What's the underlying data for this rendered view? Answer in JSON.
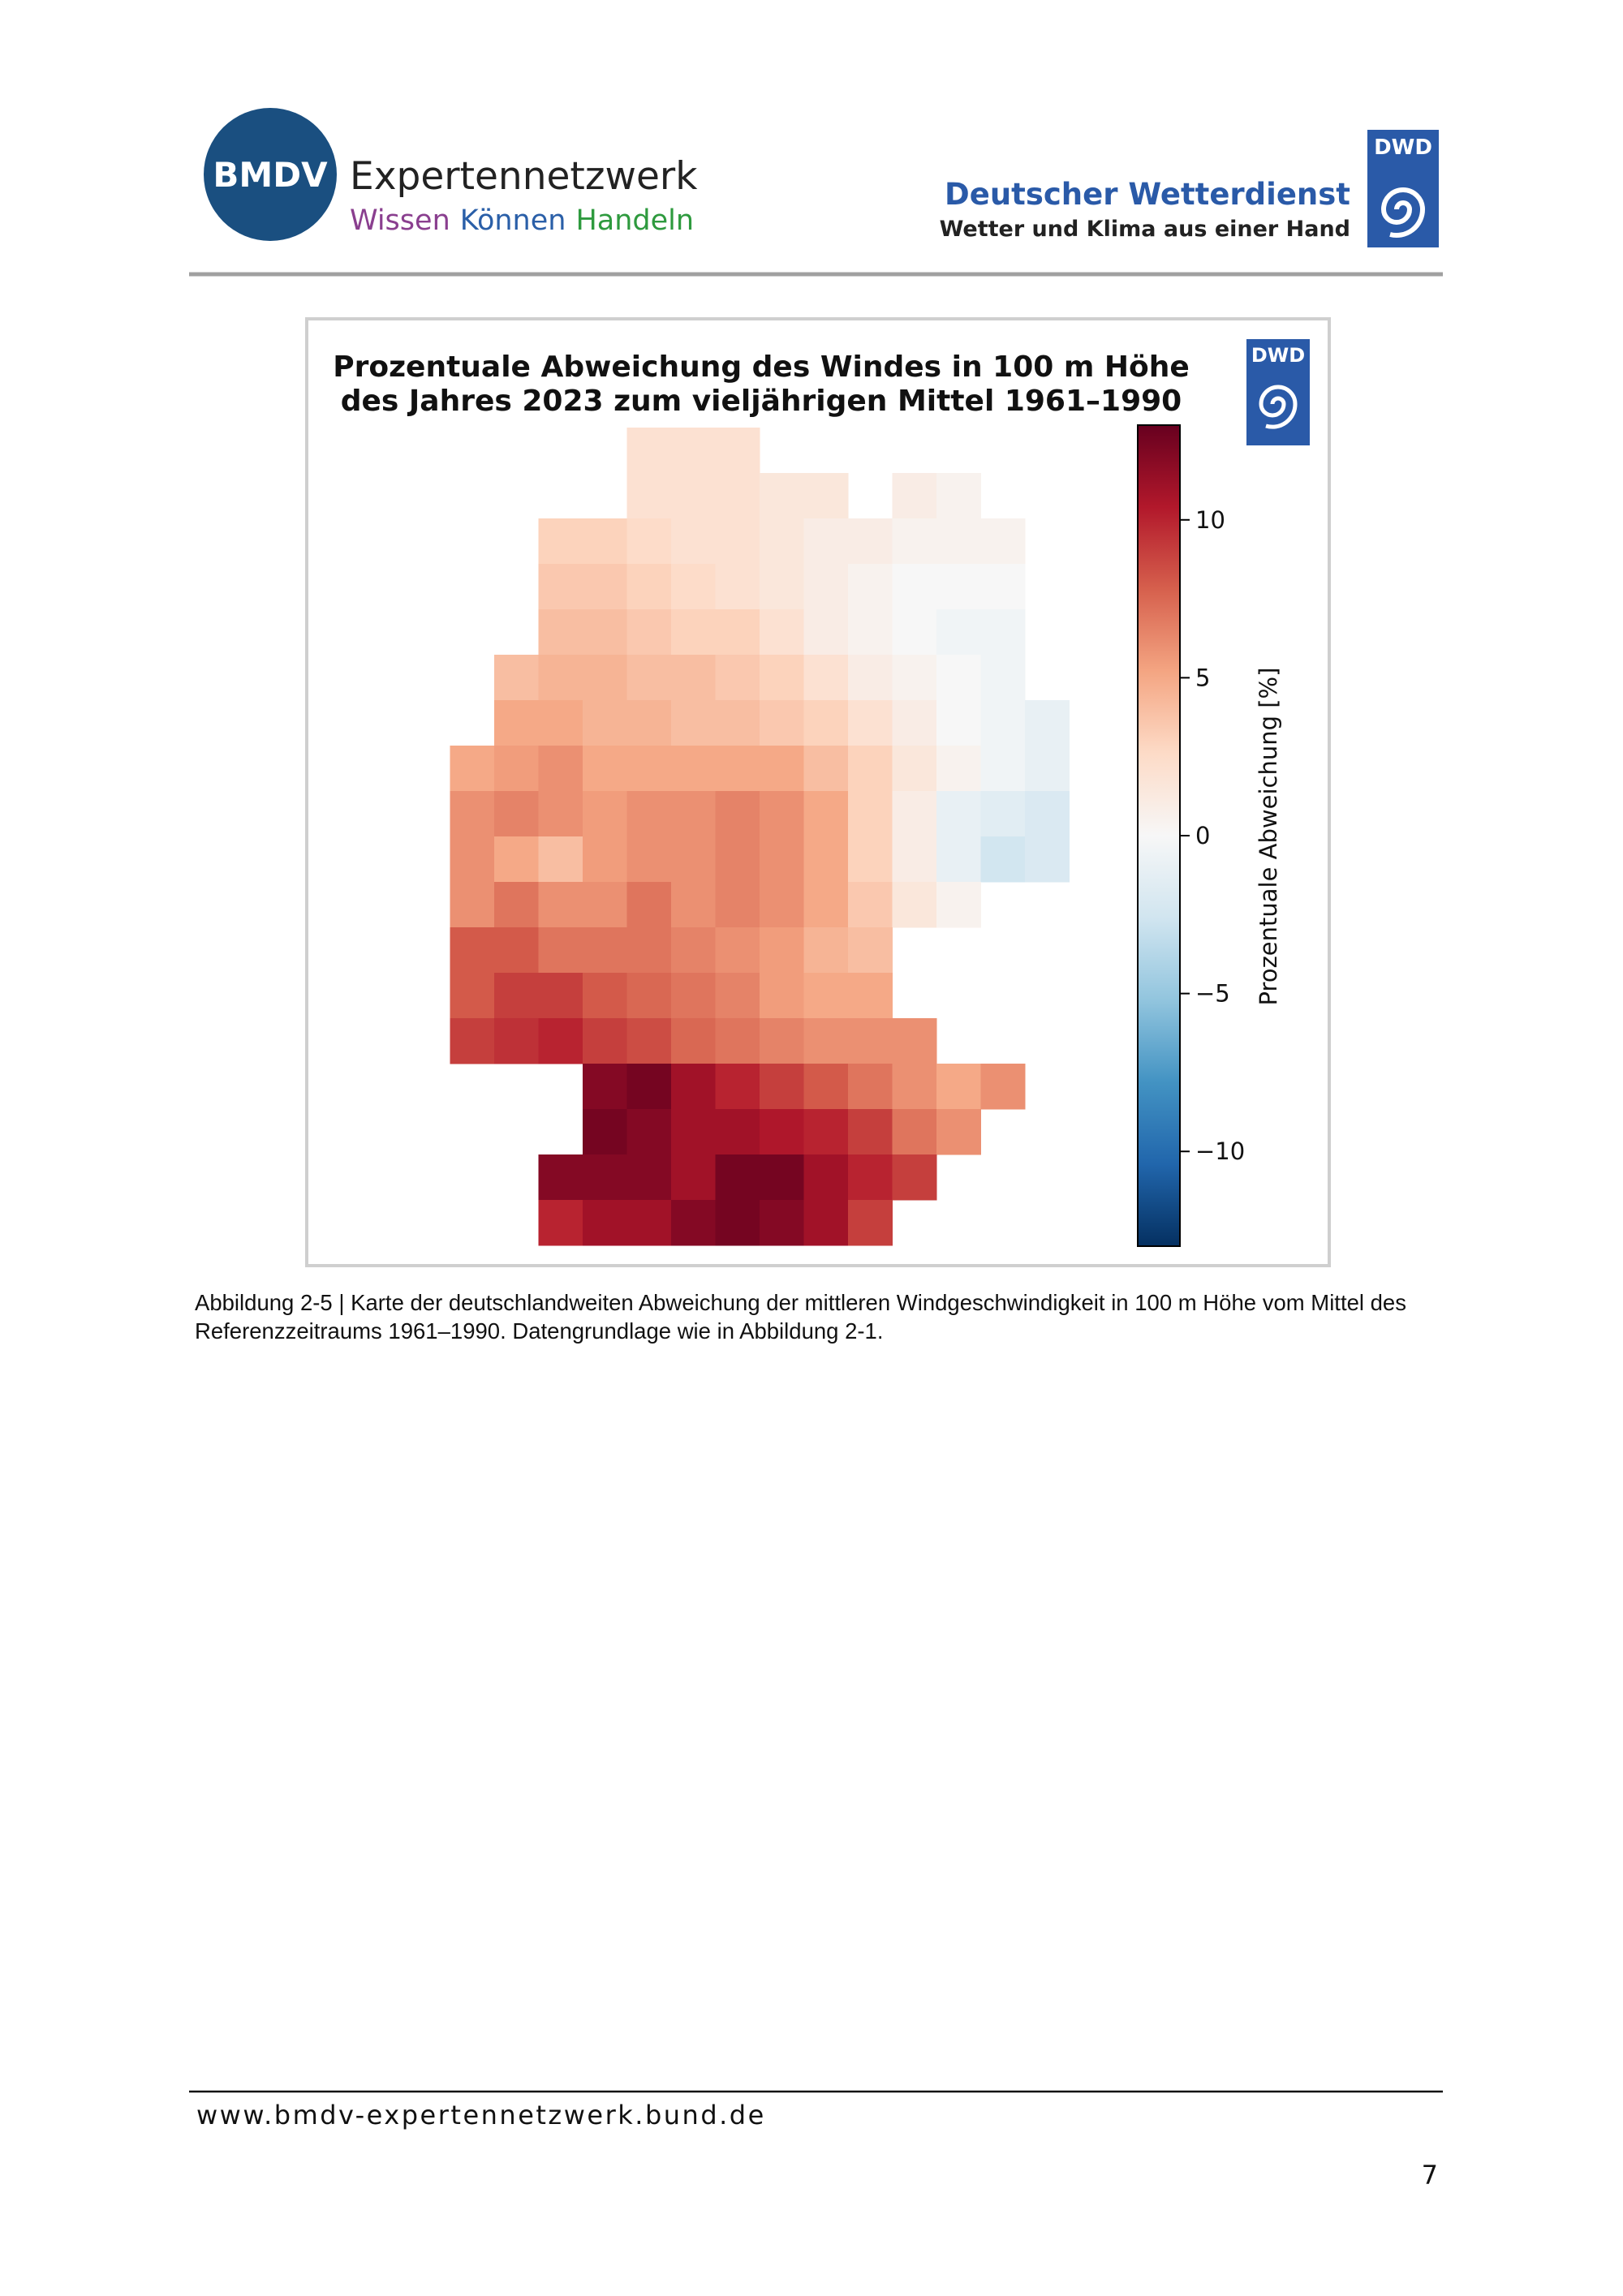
{
  "header": {
    "bmdv_logo": "BMDV",
    "title": "Expertennetzwerk",
    "tagline": [
      "Wissen",
      "Können",
      "Handeln"
    ],
    "dwd_name": "Deutscher Wetterdienst",
    "dwd_slogan": "Wetter und Klima aus einer Hand",
    "dwd_logo": "DWD"
  },
  "chart_data": {
    "type": "heatmap",
    "title": [
      "Prozentuale Abweichung des Windes in 100 m Höhe",
      "des Jahres 2023 zum vieljährigen Mittel 1961–1990"
    ],
    "logo": "DWD",
    "colorbar_label": "Prozentuale Abweichung [%]",
    "clim": [
      -13,
      13
    ],
    "cticks": [
      {
        "value": -10,
        "label": "−10"
      },
      {
        "value": -5,
        "label": "−5"
      },
      0,
      5,
      10
    ],
    "colors": [
      "#053061",
      "#2166ac",
      "#4393c3",
      "#92c5de",
      "#d1e5f0",
      "#f7f7f7",
      "#fddbc7",
      "#f4a582",
      "#d6604d",
      "#b2182b",
      "#67001f"
    ],
    "values": [
      [
        null,
        null,
        null,
        null,
        2,
        2,
        2,
        null,
        null,
        null,
        null,
        null,
        null,
        null
      ],
      [
        null,
        null,
        null,
        null,
        2,
        2,
        2,
        1.5,
        1.5,
        null,
        1,
        0.5,
        null,
        null
      ],
      [
        null,
        null,
        3,
        3,
        2.5,
        2,
        2,
        1.5,
        1,
        1,
        0.5,
        0.5,
        0.5,
        null
      ],
      [
        null,
        null,
        3.5,
        3.5,
        3,
        2.5,
        2,
        1.5,
        1,
        0.5,
        0,
        0,
        0,
        null
      ],
      [
        null,
        null,
        4,
        4,
        3.5,
        3,
        3,
        2,
        1,
        0.5,
        0,
        -0.5,
        -0.5,
        null
      ],
      [
        null,
        4,
        4.5,
        4.5,
        4,
        4,
        3.5,
        3,
        2,
        1,
        0.5,
        0,
        -0.5,
        null
      ],
      [
        null,
        5,
        5,
        4.5,
        4.5,
        4,
        4,
        3.5,
        3,
        2,
        1,
        0,
        -0.5,
        -1
      ],
      [
        5,
        5.5,
        6,
        5,
        5,
        5,
        5,
        5,
        4,
        3,
        1.5,
        0.5,
        -0.5,
        -1
      ],
      [
        6,
        6.5,
        6,
        5.5,
        6,
        6,
        6.5,
        6,
        5,
        3,
        1,
        -1,
        -1.5,
        -2
      ],
      [
        6,
        5,
        4,
        5.5,
        6,
        6,
        6.5,
        6,
        5,
        3,
        1,
        -1,
        -2.5,
        -2
      ],
      [
        6,
        7,
        6,
        6,
        7,
        6,
        6.5,
        6,
        5,
        3.5,
        1.5,
        0.5,
        null,
        null
      ],
      [
        8,
        8,
        7,
        7,
        7,
        6.5,
        6,
        5.5,
        4.5,
        4,
        null,
        null,
        null,
        null
      ],
      [
        8,
        9,
        9,
        8,
        7.5,
        7,
        6.5,
        5.5,
        5,
        5,
        null,
        null,
        null,
        null
      ],
      [
        9,
        9.5,
        10,
        9,
        8.5,
        7.5,
        7,
        6.5,
        6,
        6,
        6,
        null,
        null,
        null
      ],
      [
        null,
        null,
        null,
        12,
        12.5,
        11,
        10,
        9,
        8,
        7,
        6,
        5,
        6,
        null
      ],
      [
        null,
        null,
        null,
        12.5,
        12,
        11,
        11,
        10.5,
        10,
        9,
        7,
        6,
        null,
        null
      ],
      [
        null,
        null,
        12,
        12,
        12,
        11,
        12.5,
        12.5,
        11,
        10,
        9,
        null,
        null,
        null
      ],
      [
        null,
        null,
        10,
        11,
        11,
        12,
        12.5,
        12,
        11,
        9,
        null,
        null,
        null,
        null
      ]
    ]
  },
  "caption": "Abbildung 2-5 | Karte der deutschlandweiten Abweichung der mittleren Windgeschwindigkeit in 100 m Höhe vom Mittel des Referenzzeitraums 1961–1990. Datengrundlage wie in Abbildung 2-1.",
  "footer": {
    "url": "www.bmdv-expertennetzwerk.bund.de",
    "page": 7
  }
}
